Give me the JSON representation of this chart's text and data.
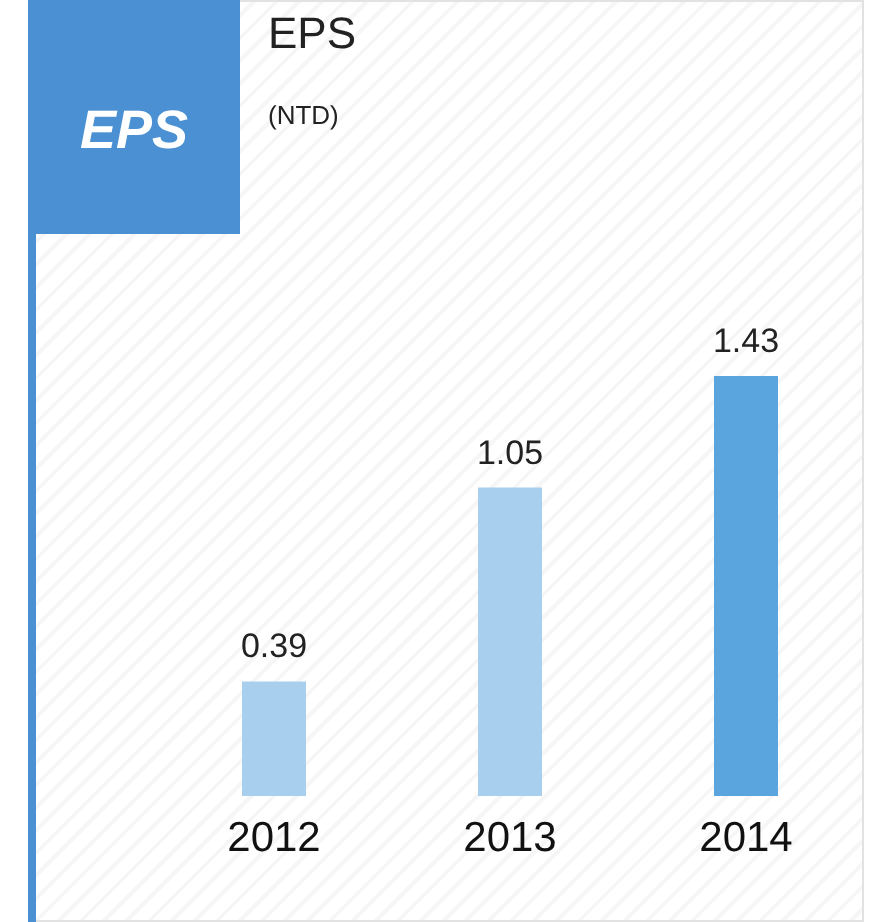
{
  "chart_data": {
    "type": "bar",
    "title": "EPS",
    "subtitle": "(NTD)",
    "annotations": [
      "EPS"
    ],
    "categories": [
      "2012",
      "2013",
      "2014"
    ],
    "values": [
      0.39,
      1.05,
      1.43
    ],
    "colors": [
      "#a9cfee",
      "#a9cfee",
      "#5aa5dd"
    ],
    "data_labels": true
  }
}
